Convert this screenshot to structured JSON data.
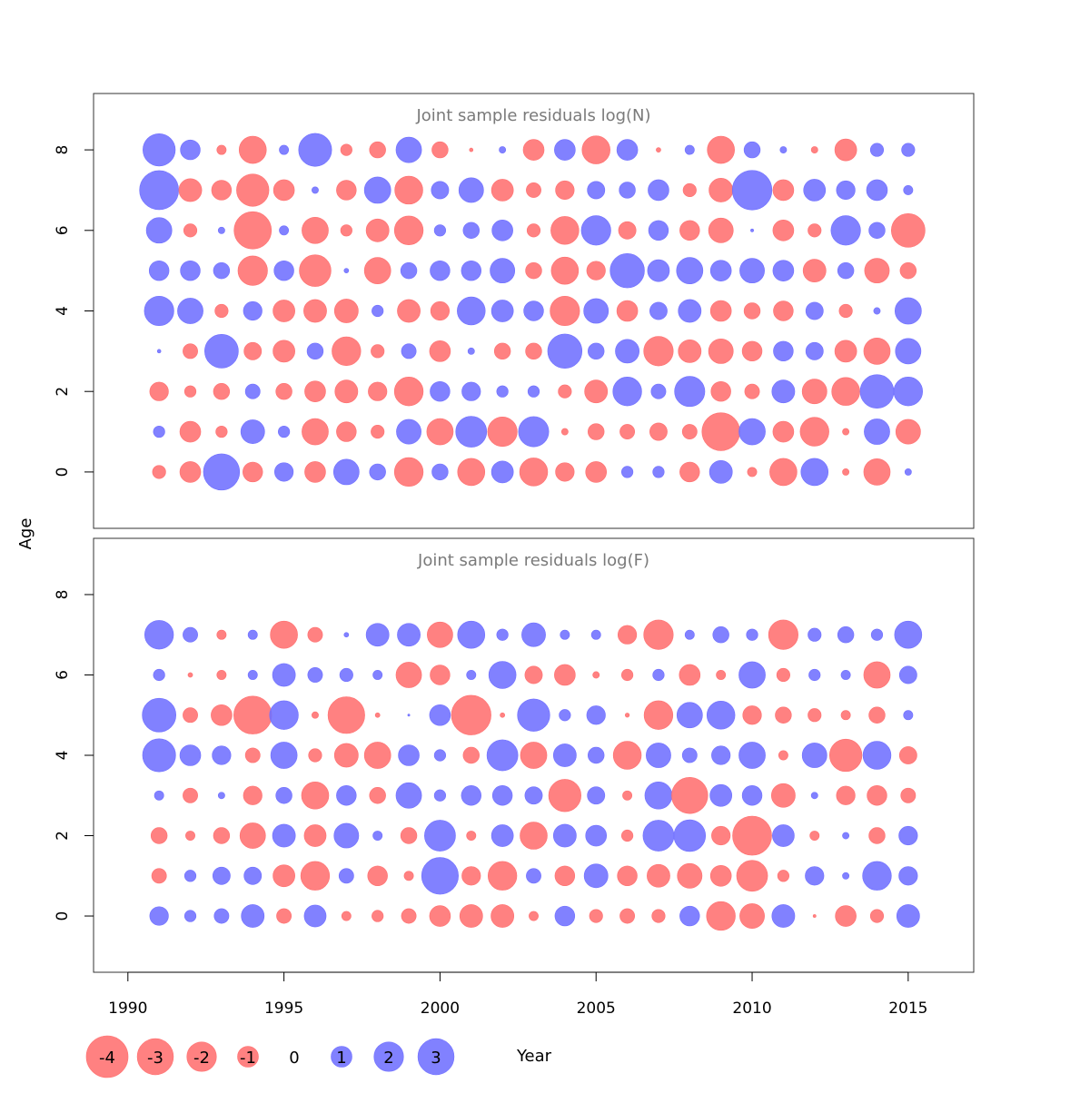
{
  "chart_data": {
    "type": "scatter",
    "subtype": "bubble",
    "xlabel": "Year",
    "ylabel": "Age",
    "xlim": [
      1988.9,
      2017.1
    ],
    "x_ticks": [
      1990,
      1995,
      2000,
      2005,
      2010,
      2015
    ],
    "colors": {
      "positive": "#7070ff",
      "negative": "#ff7070"
    },
    "years": [
      1991,
      1992,
      1993,
      1994,
      1995,
      1996,
      1997,
      1998,
      1999,
      2000,
      2001,
      2002,
      2003,
      2004,
      2005,
      2006,
      2007,
      2008,
      2009,
      2010,
      2011,
      2012,
      2013,
      2014,
      2015
    ],
    "panels": [
      {
        "title": "Joint sample residuals log(N)",
        "ylim": [
          -1.4,
          9.4
        ],
        "y_ticks": [
          0,
          2,
          4,
          6,
          8
        ],
        "ages": [
          0,
          1,
          2,
          3,
          4,
          5,
          6,
          7,
          8
        ],
        "residuals": [
          [
            -0.4,
            -1.0,
            3.0,
            -0.9,
            0.8,
            -1.0,
            1.5,
            0.6,
            -1.9,
            0.6,
            -1.7,
            1.1,
            -1.8,
            -0.8,
            -1.0,
            0.3,
            0.3,
            -0.9,
            1.2,
            -0.2,
            -1.7,
            1.7,
            -0.1,
            -1.6,
            0.1
          ],
          [
            0.3,
            -1.0,
            -0.3,
            1.3,
            0.3,
            -1.6,
            -0.9,
            -0.4,
            1.4,
            -1.6,
            2.2,
            -2.0,
            2.1,
            -0.1,
            -0.6,
            -0.5,
            -0.7,
            -0.5,
            -3.3,
            1.6,
            -1.0,
            -1.9,
            -0.1,
            1.5,
            -1.4
          ],
          [
            -0.8,
            -0.3,
            -0.6,
            0.5,
            -0.6,
            -1.0,
            -1.2,
            -0.8,
            -1.9,
            0.9,
            0.8,
            0.3,
            0.3,
            -0.4,
            -1.2,
            1.9,
            0.5,
            2.1,
            -0.9,
            -0.5,
            1.2,
            -1.4,
            -1.8,
            2.6,
            1.9
          ],
          [
            0.03,
            -0.5,
            2.6,
            -0.7,
            -1.1,
            0.6,
            -1.9,
            -0.4,
            0.5,
            -1.0,
            0.1,
            -0.6,
            -0.6,
            2.7,
            0.6,
            1.3,
            -2.0,
            -1.2,
            -1.4,
            -0.9,
            0.9,
            0.7,
            -1.1,
            -1.6,
            1.5
          ],
          [
            2.0,
            1.5,
            -0.4,
            0.8,
            -1.1,
            -1.2,
            -1.3,
            0.3,
            -1.2,
            -0.8,
            1.8,
            1.1,
            0.9,
            -2.0,
            1.4,
            -1.0,
            0.7,
            1.2,
            -1.0,
            -0.6,
            -0.9,
            0.7,
            -0.4,
            0.1,
            1.6
          ],
          [
            0.9,
            0.9,
            0.6,
            -2.0,
            0.9,
            -2.3,
            0.05,
            -1.6,
            0.6,
            0.9,
            0.9,
            1.4,
            -0.6,
            -1.7,
            -0.8,
            2.7,
            1.1,
            1.6,
            1.0,
            1.4,
            1.0,
            -1.2,
            0.6,
            -1.4,
            -0.6
          ],
          [
            1.5,
            -0.4,
            0.1,
            -3.2,
            0.2,
            -1.6,
            -0.3,
            -1.2,
            -1.9,
            0.3,
            0.6,
            1.0,
            -0.4,
            -1.8,
            2.0,
            -0.7,
            0.9,
            -0.9,
            -1.4,
            0.02,
            -1.0,
            -0.4,
            2.0,
            0.6,
            -2.6
          ],
          [
            3.5,
            -1.2,
            -0.9,
            -2.4,
            -1.0,
            0.1,
            -0.9,
            1.6,
            -1.8,
            0.7,
            1.4,
            -1.1,
            -0.5,
            -0.8,
            0.7,
            0.6,
            1.0,
            -0.4,
            -1.3,
            3.6,
            -1.0,
            1.1,
            0.8,
            1.0,
            0.2
          ],
          [
            2.4,
            0.9,
            -0.2,
            -1.7,
            0.2,
            2.5,
            -0.3,
            -0.6,
            1.5,
            -0.6,
            -0.03,
            0.1,
            -1.0,
            1.0,
            -1.8,
            1.0,
            -0.05,
            0.2,
            -1.7,
            0.6,
            0.1,
            -0.1,
            -1.1,
            0.4,
            0.4
          ]
        ]
      },
      {
        "title": "Joint sample residuals log(F)",
        "ylim": [
          -1.4,
          9.4
        ],
        "y_ticks": [
          0,
          2,
          4,
          6,
          8
        ],
        "ages": [
          0,
          1,
          2,
          3,
          4,
          5,
          6,
          7
        ],
        "residuals": [
          [
            0.8,
            0.3,
            0.5,
            1.2,
            -0.5,
            1.1,
            -0.2,
            -0.3,
            -0.5,
            -1.0,
            -1.2,
            -1.2,
            -0.2,
            0.9,
            -0.4,
            -0.5,
            -0.4,
            0.9,
            -1.9,
            -1.4,
            1.2,
            -0.02,
            -1.0,
            -0.4,
            1.2
          ],
          [
            -0.5,
            0.3,
            0.7,
            0.7,
            -1.1,
            -1.9,
            0.5,
            -0.9,
            -0.2,
            3.1,
            -0.8,
            -1.9,
            0.5,
            -0.9,
            1.3,
            -0.9,
            -1.2,
            -1.4,
            -1.0,
            -2.2,
            -0.3,
            0.8,
            0.1,
            1.9,
            0.8
          ],
          [
            -0.6,
            -0.2,
            -0.6,
            -1.5,
            1.2,
            -1.1,
            1.4,
            0.2,
            -0.6,
            2.2,
            -0.2,
            1.1,
            -1.7,
            1.2,
            1.0,
            -0.3,
            2.2,
            2.3,
            -0.8,
            -3.5,
            1.1,
            -0.2,
            0.1,
            -0.6,
            0.8
          ],
          [
            0.2,
            -0.5,
            0.1,
            -0.8,
            0.6,
            -1.7,
            0.9,
            -0.6,
            1.5,
            0.3,
            0.9,
            0.9,
            0.7,
            -2.4,
            0.7,
            -0.2,
            1.7,
            -3.0,
            1.1,
            0.9,
            -1.3,
            0.1,
            -0.8,
            -0.9,
            -0.5
          ],
          [
            2.5,
            1.0,
            0.8,
            -0.5,
            1.6,
            -0.4,
            -1.3,
            -1.6,
            1.0,
            0.3,
            -0.6,
            2.2,
            -1.6,
            1.2,
            0.6,
            -1.8,
            1.4,
            0.5,
            0.8,
            1.6,
            -0.2,
            1.4,
            -2.4,
            1.8,
            -0.7
          ],
          [
            2.6,
            -0.5,
            -1.0,
            -3.3,
            1.9,
            -0.1,
            -3.1,
            -0.05,
            0.01,
            1.0,
            -3.6,
            -0.05,
            2.4,
            0.3,
            0.8,
            -0.04,
            -1.9,
            1.5,
            1.8,
            -0.8,
            -0.6,
            -0.4,
            -0.2,
            -0.6,
            0.2
          ],
          [
            0.3,
            -0.05,
            -0.2,
            0.2,
            1.2,
            0.5,
            0.4,
            0.2,
            -1.5,
            -0.9,
            0.2,
            1.7,
            -0.7,
            -1.0,
            -0.1,
            -0.3,
            0.3,
            -1.0,
            -0.2,
            1.6,
            -0.4,
            0.3,
            0.2,
            -1.6,
            0.7
          ],
          [
            1.9,
            0.5,
            -0.2,
            0.2,
            -1.7,
            -0.5,
            0.05,
            1.2,
            1.2,
            -1.5,
            1.7,
            0.3,
            1.3,
            0.2,
            0.2,
            -0.8,
            -2.0,
            0.2,
            0.6,
            0.3,
            -2.0,
            0.4,
            0.6,
            0.3,
            1.7
          ]
        ]
      }
    ],
    "legend": {
      "values": [
        -4,
        -3,
        -2,
        -1,
        0,
        1,
        2,
        3
      ],
      "labels": [
        "-4",
        "-3",
        "-2",
        "-1",
        "0",
        "1",
        "2",
        "3"
      ]
    }
  }
}
